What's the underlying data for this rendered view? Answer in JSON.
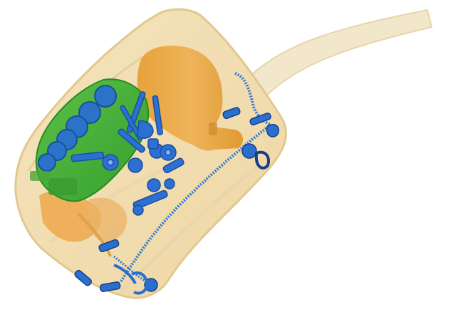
{
  "scan": {
    "background_color": "#ffffff",
    "organic_color": "#e9a33d",
    "organic_light_color": "#f2dcae",
    "mixed_color": "#3fae2e",
    "metal_color": "#1e6fd0",
    "objects": [
      "bag-strap-icon",
      "bag-body-icon",
      "bottle-icon",
      "battery-pack-icon",
      "keys-icon",
      "zipper-icon",
      "zipper-pull-icon",
      "clip-hook-icon"
    ]
  }
}
